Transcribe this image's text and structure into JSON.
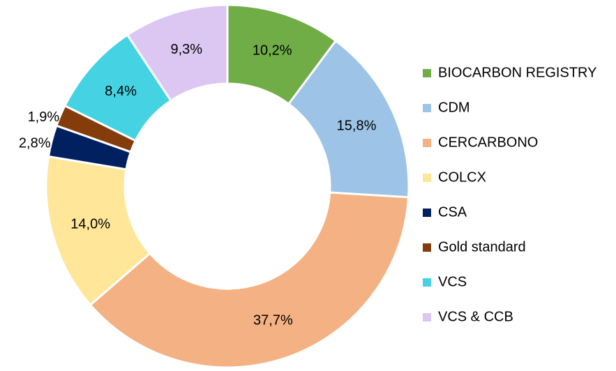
{
  "chart_data": {
    "type": "donut",
    "categories": [
      "BIOCARBON REGISTRY",
      "CDM",
      "CERCARBONO",
      "COLCX",
      "CSA",
      "Gold standard",
      "VCS",
      "VCS & CCB"
    ],
    "values": [
      10.2,
      15.8,
      37.7,
      14.0,
      2.8,
      1.9,
      8.4,
      9.3
    ],
    "value_labels": [
      "10,2%",
      "15,8%",
      "37,7%",
      "14,0%",
      "2,8%",
      "1,9%",
      "8,4%",
      "9,3%"
    ],
    "colors": [
      "#70ad47",
      "#9dc3e6",
      "#f4b183",
      "#ffe699",
      "#002060",
      "#843c0c",
      "#45d3e3",
      "#dcc6f2"
    ],
    "legend": "right"
  }
}
